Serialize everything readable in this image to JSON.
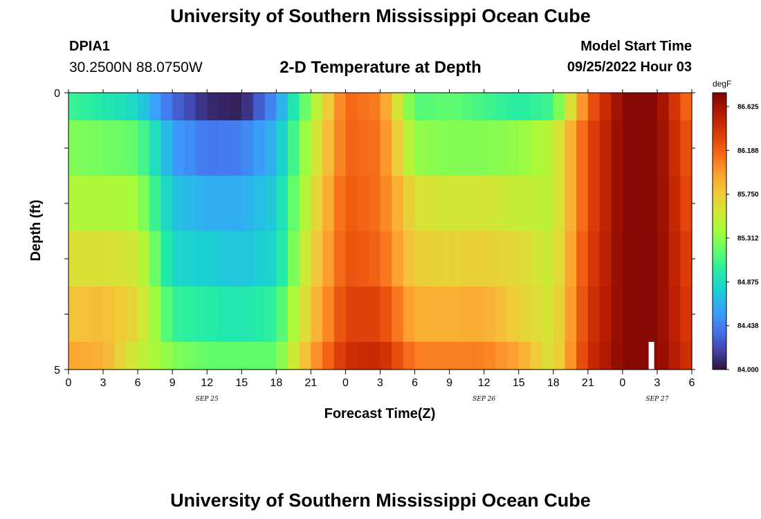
{
  "page": {
    "title": "University of Southern Mississippi Ocean Cube",
    "footer_title": "University of Southern Mississippi Ocean Cube",
    "station_id": "DPIA1",
    "station_coords": "30.2500N  88.0750W",
    "model_start_label": "Model Start Time",
    "model_start_value": "09/25/2022 Hour 03"
  },
  "chart_data": {
    "type": "heatmap",
    "title": "2-D Temperature at Depth",
    "xlabel": "Forecast Time(Z)",
    "ylabel": "Depth (ft)",
    "x_tick_labels": [
      "0",
      "3",
      "6",
      "9",
      "12",
      "15",
      "18",
      "21",
      "0",
      "3",
      "6",
      "9",
      "12",
      "15",
      "18",
      "21",
      "0",
      "3",
      "6"
    ],
    "date_labels": [
      {
        "label": "SEP 25",
        "hour": 12
      },
      {
        "label": "SEP 26",
        "hour": 36
      },
      {
        "label": "SEP 27",
        "hour": 51
      }
    ],
    "y_tick_labels": [
      "0",
      "5"
    ],
    "x_range_hours": [
      0,
      54
    ],
    "y_range_ft": [
      0,
      5
    ],
    "colorbar": {
      "unit": "degF",
      "ticks": [
        "86.625",
        "86.188",
        "85.750",
        "85.312",
        "84.875",
        "84.438",
        "84.000"
      ],
      "min": 84.0,
      "max": 86.8,
      "colors": [
        "#30123b",
        "#4145ab",
        "#4675ed",
        "#39a2fc",
        "#1bcfd4",
        "#24eca6",
        "#61fc6c",
        "#a4fc3b",
        "#d1e834",
        "#f3c63a",
        "#fe9b2d",
        "#f36315",
        "#d93806",
        "#b11901",
        "#7a0403"
      ]
    },
    "depth_layers": [
      0,
      0.5,
      1.5,
      2.5,
      3.5,
      4.5
    ],
    "hours": [
      0,
      3,
      6,
      9,
      12,
      15,
      18,
      21,
      24,
      27,
      30,
      33,
      36,
      39,
      42,
      45,
      48,
      51,
      54
    ],
    "temperature_degF": [
      [
        85.08,
        84.98,
        84.85,
        84.35,
        84.1,
        84.05,
        84.55,
        85.35,
        86.2,
        86.1,
        85.15,
        85.2,
        85.1,
        85.0,
        85.1,
        86.2,
        86.75,
        86.75,
        86.1
      ],
      [
        85.3,
        85.25,
        85.2,
        84.6,
        84.4,
        84.45,
        84.7,
        85.5,
        86.2,
        86.15,
        85.35,
        85.3,
        85.3,
        85.35,
        85.5,
        86.3,
        86.75,
        86.75,
        86.2
      ],
      [
        85.45,
        85.45,
        85.4,
        84.75,
        84.65,
        84.65,
        84.8,
        85.6,
        86.25,
        86.15,
        85.65,
        85.6,
        85.62,
        85.55,
        85.5,
        86.3,
        86.75,
        86.75,
        86.25
      ],
      [
        85.65,
        85.65,
        85.6,
        84.85,
        84.8,
        84.75,
        84.85,
        85.7,
        86.28,
        86.2,
        85.75,
        85.72,
        85.75,
        85.7,
        85.55,
        86.35,
        86.75,
        86.75,
        86.3
      ],
      [
        85.8,
        85.85,
        85.7,
        85.05,
        85.0,
        84.95,
        85.05,
        85.8,
        86.35,
        86.35,
        85.9,
        85.9,
        85.92,
        85.75,
        85.6,
        86.4,
        86.75,
        86.75,
        86.35
      ],
      [
        85.95,
        85.9,
        85.55,
        85.3,
        85.2,
        85.2,
        85.2,
        85.95,
        86.45,
        86.5,
        86.1,
        86.1,
        86.1,
        85.95,
        85.6,
        86.45,
        86.75,
        86.75,
        86.4
      ]
    ],
    "gap_marker": {
      "hour": 50.5,
      "depth_from": 4.5,
      "depth_to": 5.0
    }
  }
}
